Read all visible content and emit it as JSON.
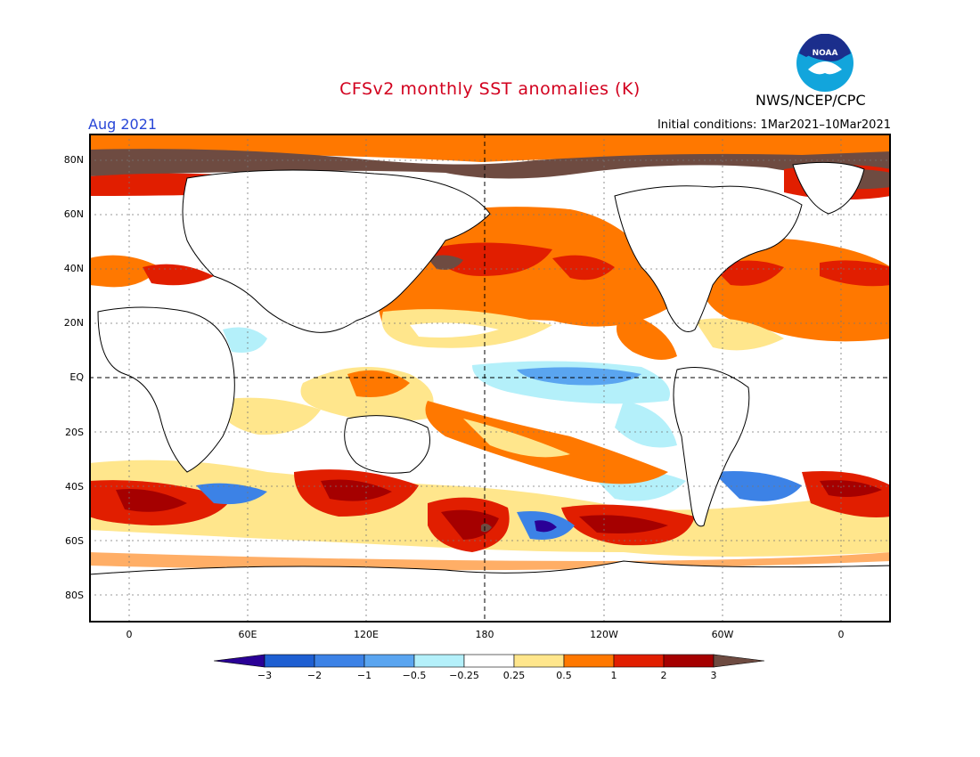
{
  "title": "CFSv2 monthly SST anomalies (K)",
  "organization": "NWS/NCEP/CPC",
  "logo_text": "NOAA",
  "valid_month": "Aug 2021",
  "initial_conditions": "Initial conditions: 1Mar2021–10Mar2021",
  "colors": {
    "title": "#d2001e",
    "month": "#2846d7"
  },
  "lat_labels": [
    "80N",
    "60N",
    "40N",
    "20N",
    "EQ",
    "20S",
    "40S",
    "60S",
    "80S"
  ],
  "lon_labels": [
    "0",
    "60E",
    "120E",
    "180",
    "120W",
    "60W",
    "0"
  ],
  "colorbar": {
    "labels": [
      "−3",
      "−2",
      "−1",
      "−0.5",
      "−0.25",
      "0.25",
      "0.5",
      "1",
      "2",
      "3"
    ],
    "colors": [
      "#2a0096",
      "#1e5fd2",
      "#3c82e6",
      "#5aa5f0",
      "#b4f0fa",
      "#ffffff",
      "#ffe68c",
      "#ff7800",
      "#e11e00",
      "#a50000",
      "#6e4b41"
    ]
  }
}
